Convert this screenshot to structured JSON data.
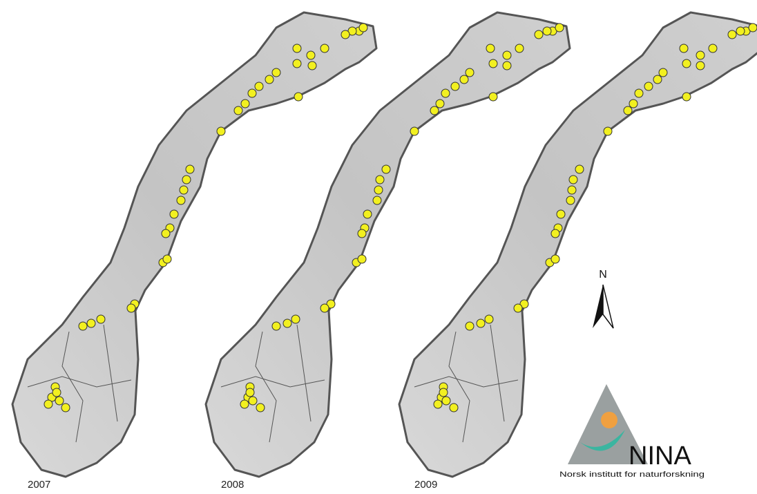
{
  "maps": [
    {
      "year": "2007"
    },
    {
      "year": "2008"
    },
    {
      "year": "2009"
    }
  ],
  "north_arrow": {
    "label": "N"
  },
  "logo": {
    "name": "NINA",
    "subtitle": "Norsk institutt for naturforskning"
  }
}
